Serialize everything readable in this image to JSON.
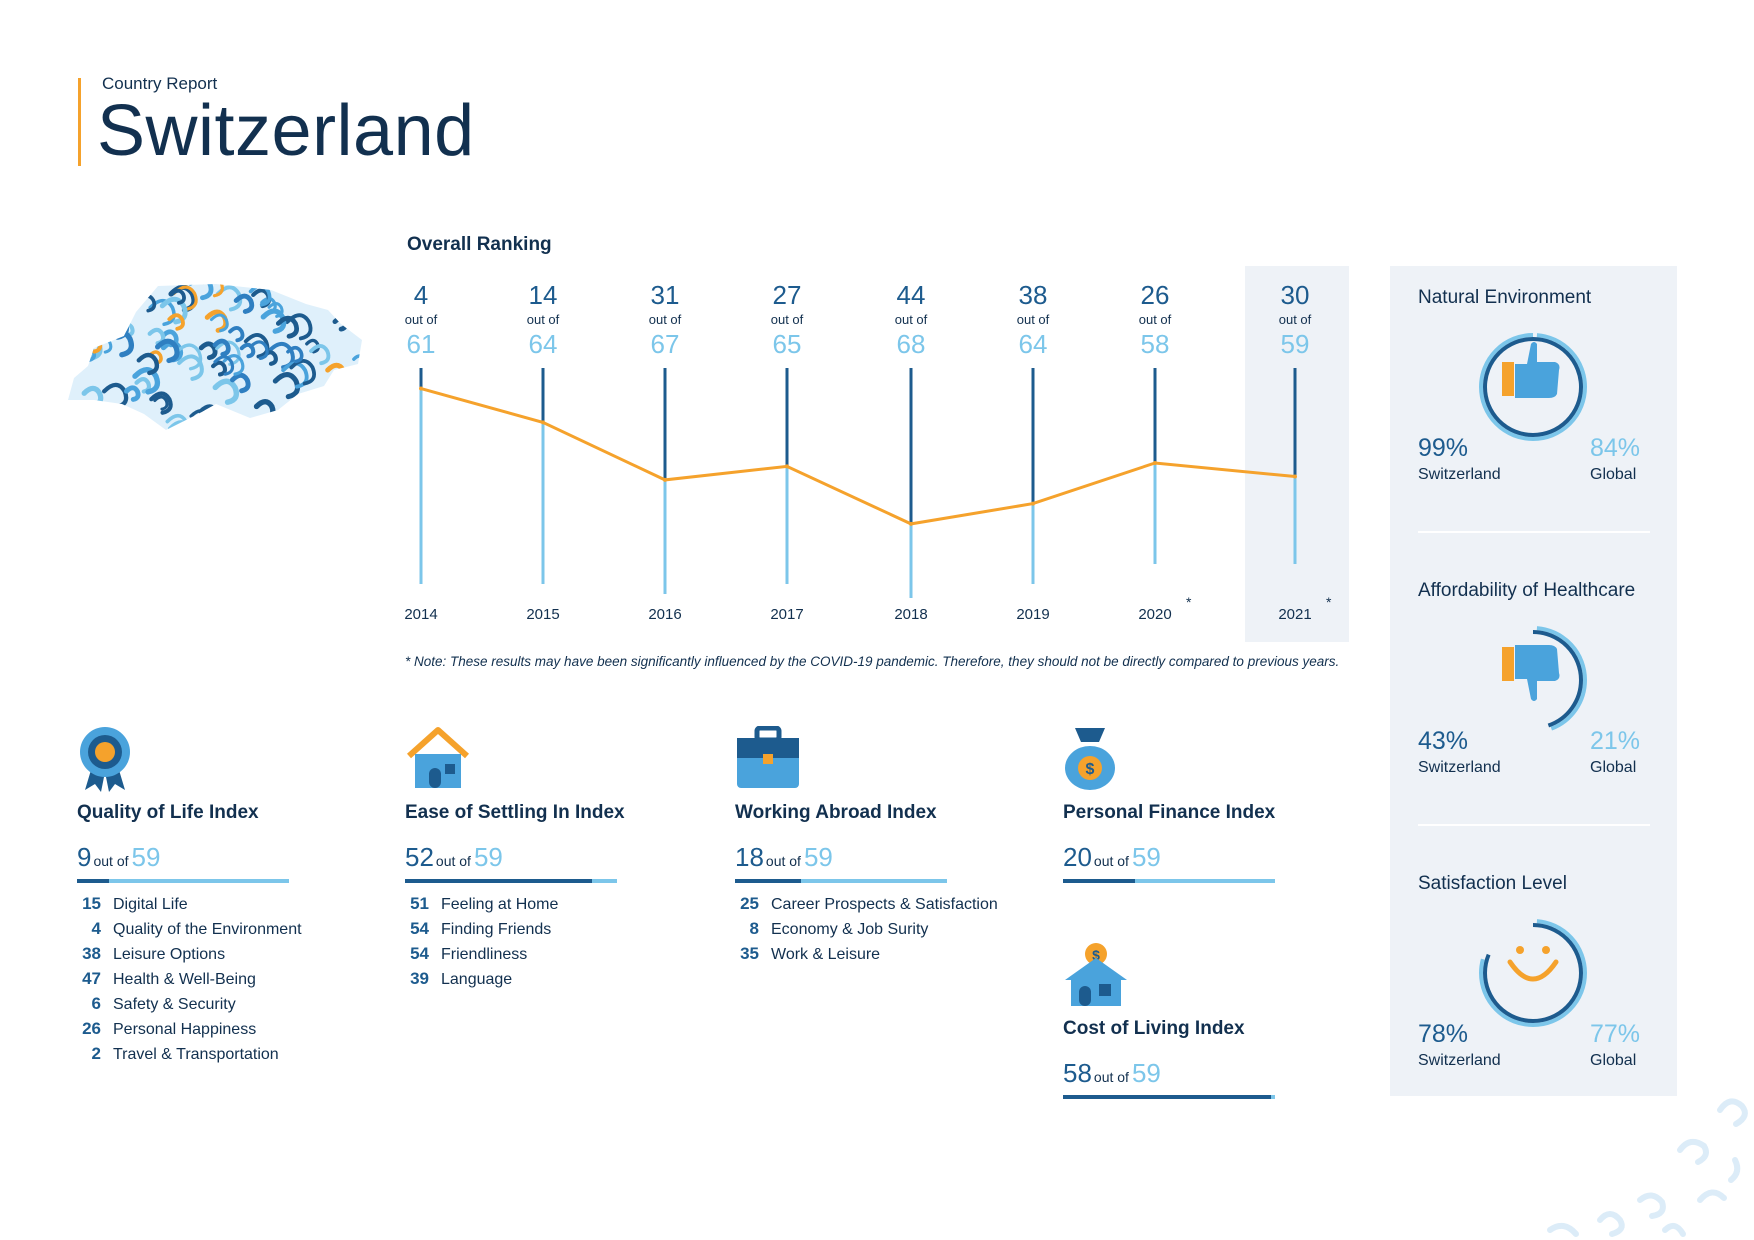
{
  "header": {
    "subtitle": "Country Report",
    "title": "Switzerland"
  },
  "chart_data": {
    "type": "line",
    "title": "Overall Ranking",
    "x": [
      "2014",
      "2015",
      "2016",
      "2017",
      "2018",
      "2019",
      "2020",
      "2021"
    ],
    "series": [
      {
        "values": [
          4,
          14,
          31,
          27,
          44,
          38,
          26,
          30
        ]
      }
    ],
    "totals": [
      61,
      64,
      67,
      65,
      68,
      64,
      58,
      59
    ],
    "out_of_label": "out of",
    "starred_years": [
      "2020",
      "2021"
    ],
    "highlight_year": "2021",
    "star": "*",
    "colors": {
      "line": "#f5a22c",
      "rank": "#1d5b8e",
      "total": "#7cc6ea",
      "highlight_bg": "#eef2f7"
    },
    "note": "* Note: These results may have been significantly influenced by the COVID-19 pandemic. Therefore, they should not be directly compared to previous years."
  },
  "indices": [
    {
      "name": "Quality of Life Index",
      "rank": "9",
      "out_of": "out of",
      "total": "59",
      "fraction": 0.15,
      "icon": "medal-icon",
      "subs": [
        {
          "n": "15",
          "label": "Digital Life"
        },
        {
          "n": "4",
          "label": "Quality of the Environment"
        },
        {
          "n": "38",
          "label": "Leisure Options"
        },
        {
          "n": "47",
          "label": "Health & Well-Being"
        },
        {
          "n": "6",
          "label": "Safety & Security"
        },
        {
          "n": "26",
          "label": "Personal Happiness"
        },
        {
          "n": "2",
          "label": "Travel & Transportation"
        }
      ]
    },
    {
      "name": "Ease of Settling In Index",
      "rank": "52",
      "out_of": "out of",
      "total": "59",
      "fraction": 0.88,
      "icon": "house-icon",
      "subs": [
        {
          "n": "51",
          "label": "Feeling at Home"
        },
        {
          "n": "54",
          "label": "Finding Friends"
        },
        {
          "n": "54",
          "label": "Friendliness"
        },
        {
          "n": "39",
          "label": "Language"
        }
      ]
    },
    {
      "name": "Working Abroad Index",
      "rank": "18",
      "out_of": "out of",
      "total": "59",
      "fraction": 0.31,
      "icon": "briefcase-icon",
      "subs": [
        {
          "n": "25",
          "label": "Career Prospects & Satisfaction"
        },
        {
          "n": "8",
          "label": "Economy & Job Surity"
        },
        {
          "n": "35",
          "label": "Work & Leisure"
        }
      ]
    },
    {
      "name": "Personal Finance Index",
      "rank": "20",
      "out_of": "out of",
      "total": "59",
      "fraction": 0.34,
      "icon": "money-bag-icon",
      "subs": []
    },
    {
      "name": "Cost of Living Index",
      "rank": "58",
      "out_of": "out of",
      "total": "59",
      "fraction": 0.98,
      "icon": "house-coin-icon",
      "subs": []
    }
  ],
  "panel": [
    {
      "title": "Natural Environment",
      "icon": "thumbs-up-icon",
      "country_pct": "99%",
      "country_label": "Switzerland",
      "global_pct": "84%",
      "global_label": "Global",
      "value": 0.99
    },
    {
      "title": "Affordability of Healthcare",
      "icon": "thumbs-down-icon",
      "country_pct": "43%",
      "country_label": "Switzerland",
      "global_pct": "21%",
      "global_label": "Global",
      "value": 0.43
    },
    {
      "title": "Satisfaction Level",
      "icon": "smiley-icon",
      "country_pct": "78%",
      "country_label": "Switzerland",
      "global_pct": "77%",
      "global_label": "Global",
      "value": 0.78
    }
  ]
}
